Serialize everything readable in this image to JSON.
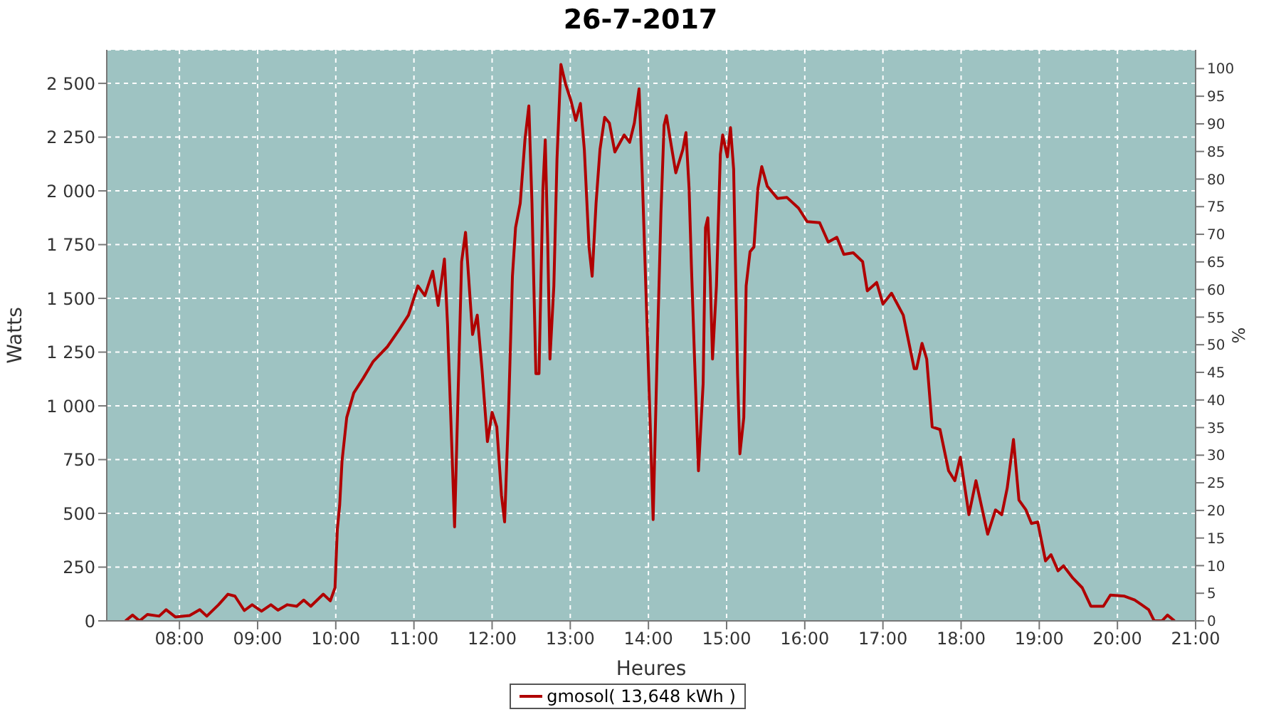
{
  "chart_data": {
    "type": "line",
    "title": "26-7-2017",
    "xlabel": "Heures",
    "ylabel": "Watts",
    "y2label": "%",
    "x": [
      7.31,
      7.4,
      7.49,
      7.59,
      7.74,
      7.83,
      7.95,
      8.13,
      8.26,
      8.35,
      8.5,
      8.62,
      8.71,
      8.83,
      8.93,
      9.05,
      9.17,
      9.26,
      9.38,
      9.5,
      9.59,
      9.68,
      9.84,
      9.93,
      9.99,
      10.02,
      10.05,
      10.08,
      10.14,
      10.23,
      10.35,
      10.48,
      10.66,
      10.81,
      10.93,
      11.05,
      11.14,
      11.24,
      11.31,
      11.39,
      11.43,
      11.48,
      11.52,
      11.57,
      11.61,
      11.66,
      11.75,
      11.81,
      11.87,
      11.94,
      12.0,
      12.06,
      12.12,
      12.16,
      12.21,
      12.26,
      12.3,
      12.36,
      12.42,
      12.47,
      12.51,
      12.56,
      12.6,
      12.65,
      12.68,
      12.71,
      12.74,
      12.79,
      12.83,
      12.88,
      12.94,
      13.01,
      13.07,
      13.13,
      13.18,
      13.24,
      13.28,
      13.33,
      13.38,
      13.44,
      13.5,
      13.57,
      13.69,
      13.76,
      13.82,
      13.88,
      13.92,
      13.97,
      14.02,
      14.06,
      14.11,
      14.16,
      14.2,
      14.23,
      14.28,
      14.35,
      14.44,
      14.48,
      14.52,
      14.55,
      14.59,
      14.64,
      14.7,
      14.73,
      14.76,
      14.79,
      14.82,
      14.87,
      14.92,
      14.95,
      15.01,
      15.05,
      15.09,
      15.14,
      15.17,
      15.22,
      15.25,
      15.3,
      15.35,
      15.4,
      15.45,
      15.52,
      15.65,
      15.77,
      15.92,
      16.03,
      16.19,
      16.3,
      16.41,
      16.5,
      16.62,
      16.74,
      16.8,
      16.92,
      17.0,
      17.11,
      17.26,
      17.4,
      17.43,
      17.5,
      17.56,
      17.63,
      17.73,
      17.84,
      17.92,
      17.99,
      18.1,
      18.19,
      18.34,
      18.44,
      18.52,
      18.59,
      18.67,
      18.74,
      18.83,
      18.9,
      18.98,
      19.08,
      19.15,
      19.24,
      19.31,
      19.43,
      19.55,
      19.66,
      19.82,
      19.91,
      20.09,
      20.22,
      20.31,
      20.4,
      20.47,
      20.57,
      20.64,
      20.73
    ],
    "series": [
      {
        "name": "gmosol( 13,648 kWh )",
        "color": "#b00000",
        "values": [
          0,
          27,
          0,
          30,
          22,
          52,
          18,
          25,
          52,
          22,
          75,
          124,
          115,
          48,
          75,
          45,
          75,
          50,
          75,
          68,
          97,
          68,
          124,
          93,
          154,
          426,
          539,
          743,
          946,
          1060,
          1128,
          1207,
          1275,
          1354,
          1422,
          1558,
          1513,
          1626,
          1467,
          1683,
          1377,
          856,
          437,
          1128,
          1671,
          1807,
          1332,
          1422,
          1173,
          834,
          970,
          902,
          584,
          460,
          970,
          1603,
          1829,
          1943,
          2237,
          2395,
          1943,
          1150,
          1150,
          2011,
          2237,
          1784,
          1218,
          1558,
          2147,
          2588,
          2497,
          2418,
          2328,
          2407,
          2192,
          1739,
          1603,
          1943,
          2192,
          2342,
          2316,
          2181,
          2260,
          2226,
          2316,
          2475,
          2079,
          1513,
          946,
          471,
          1218,
          1898,
          2305,
          2350,
          2237,
          2084,
          2192,
          2271,
          2011,
          1649,
          1218,
          698,
          1105,
          1829,
          1875,
          1603,
          1218,
          1558,
          2170,
          2260,
          2158,
          2294,
          2101,
          1150,
          777,
          946,
          1558,
          1717,
          1739,
          2011,
          2113,
          2022,
          1965,
          1970,
          1920,
          1857,
          1852,
          1762,
          1784,
          1705,
          1712,
          1671,
          1535,
          1574,
          1474,
          1524,
          1422,
          1173,
          1173,
          1291,
          1218,
          902,
          890,
          698,
          652,
          761,
          494,
          652,
          403,
          516,
          494,
          618,
          844,
          562,
          516,
          453,
          460,
          279,
          308,
          233,
          256,
          199,
          154,
          68,
          68,
          120,
          115,
          97,
          75,
          52,
          0,
          0,
          27,
          0
        ]
      }
    ],
    "xlim": [
      7.07,
      21.0
    ],
    "xticks": [
      {
        "value": 8,
        "label": "08:00"
      },
      {
        "value": 9,
        "label": "09:00"
      },
      {
        "value": 10,
        "label": "10:00"
      },
      {
        "value": 11,
        "label": "11:00"
      },
      {
        "value": 12,
        "label": "12:00"
      },
      {
        "value": 13,
        "label": "13:00"
      },
      {
        "value": 14,
        "label": "14:00"
      },
      {
        "value": 15,
        "label": "15:00"
      },
      {
        "value": 16,
        "label": "16:00"
      },
      {
        "value": 17,
        "label": "17:00"
      },
      {
        "value": 18,
        "label": "18:00"
      },
      {
        "value": 19,
        "label": "19:00"
      },
      {
        "value": 20,
        "label": "20:00"
      },
      {
        "value": 21,
        "label": "21:00"
      }
    ],
    "ylim": [
      0,
      2656
    ],
    "yticks": [
      0,
      250,
      500,
      750,
      {
        "value": 1000,
        "label": "1 000"
      },
      {
        "value": 1250,
        "label": "1 250"
      },
      {
        "value": 1500,
        "label": "1 500"
      },
      {
        "value": 1750,
        "label": "1 750"
      },
      {
        "value": 2000,
        "label": "2 000"
      },
      {
        "value": 2250,
        "label": "2 250"
      },
      {
        "value": 2500,
        "label": "2 500"
      }
    ],
    "y2lim": [
      0,
      103.4
    ],
    "y2ticks": [
      0,
      5,
      10,
      15,
      20,
      25,
      30,
      35,
      40,
      45,
      50,
      55,
      60,
      65,
      70,
      75,
      80,
      85,
      90,
      95,
      100
    ],
    "grid": true,
    "legend": "bottom",
    "marker": "none",
    "line_style": "solid"
  }
}
